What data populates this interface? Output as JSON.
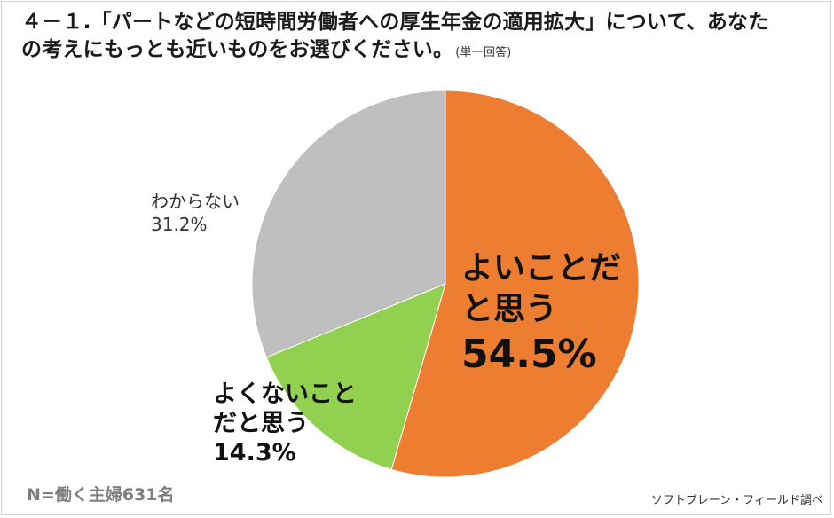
{
  "title": {
    "line1": "４－１.「パートなどの短時間労働者への厚生年金の適用拡大」について、あなた",
    "line2": "の考えにもっとも近いものをお選びください。",
    "note": "(単一回答)"
  },
  "footer": {
    "sample": "N=働く主婦631名",
    "source": "ソフトブレーン・フィールド調べ"
  },
  "chart_data": {
    "type": "pie",
    "start": "12 o'clock",
    "direction": "clockwise",
    "categories": [
      "よいことだと思う",
      "よくないことだと思う",
      "わからない"
    ],
    "values": [
      54.5,
      14.3,
      31.2
    ],
    "unit": "%",
    "colors": [
      "#ed7d31",
      "#92d050",
      "#bfbfbf"
    ],
    "labels": [
      {
        "line1": "よいことだ",
        "line2": "と思う",
        "pct": "54.5%"
      },
      {
        "line1": "よくないこと",
        "line2": "だと思う",
        "pct": "14.3%"
      },
      {
        "line1": "わからない",
        "line2": "",
        "pct": "31.2%"
      }
    ]
  }
}
